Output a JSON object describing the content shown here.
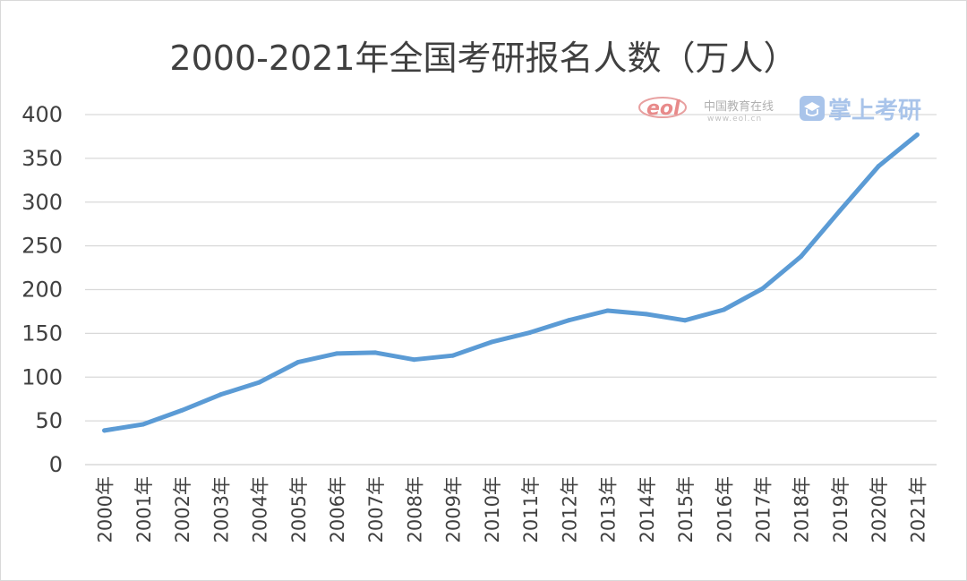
{
  "chart_data": {
    "type": "line",
    "title": "2000-2021年全国考研报名人数（万人）",
    "categories": [
      "2000年",
      "2001年",
      "2002年",
      "2003年",
      "2004年",
      "2005年",
      "2006年",
      "2007年",
      "2008年",
      "2009年",
      "2010年",
      "2011年",
      "2012年",
      "2013年",
      "2014年",
      "2015年",
      "2016年",
      "2017年",
      "2018年",
      "2019年",
      "2020年",
      "2021年"
    ],
    "series": [
      {
        "values": [
          39,
          46,
          62,
          80,
          94,
          117,
          127,
          128,
          120,
          124.6,
          140,
          151,
          165,
          176,
          172,
          164.9,
          177,
          201,
          238,
          290,
          341,
          377
        ]
      }
    ],
    "yticks": [
      0,
      50,
      100,
      150,
      200,
      250,
      300,
      350,
      400
    ],
    "ylim": [
      0,
      400
    ],
    "grid": true,
    "legend": "none",
    "line_color": "#5b9bd5"
  },
  "watermark": {
    "eol_logo": "eol",
    "site_name": "中国教育在线",
    "site_url": "www.eol.cn",
    "brand": "掌上考研"
  }
}
